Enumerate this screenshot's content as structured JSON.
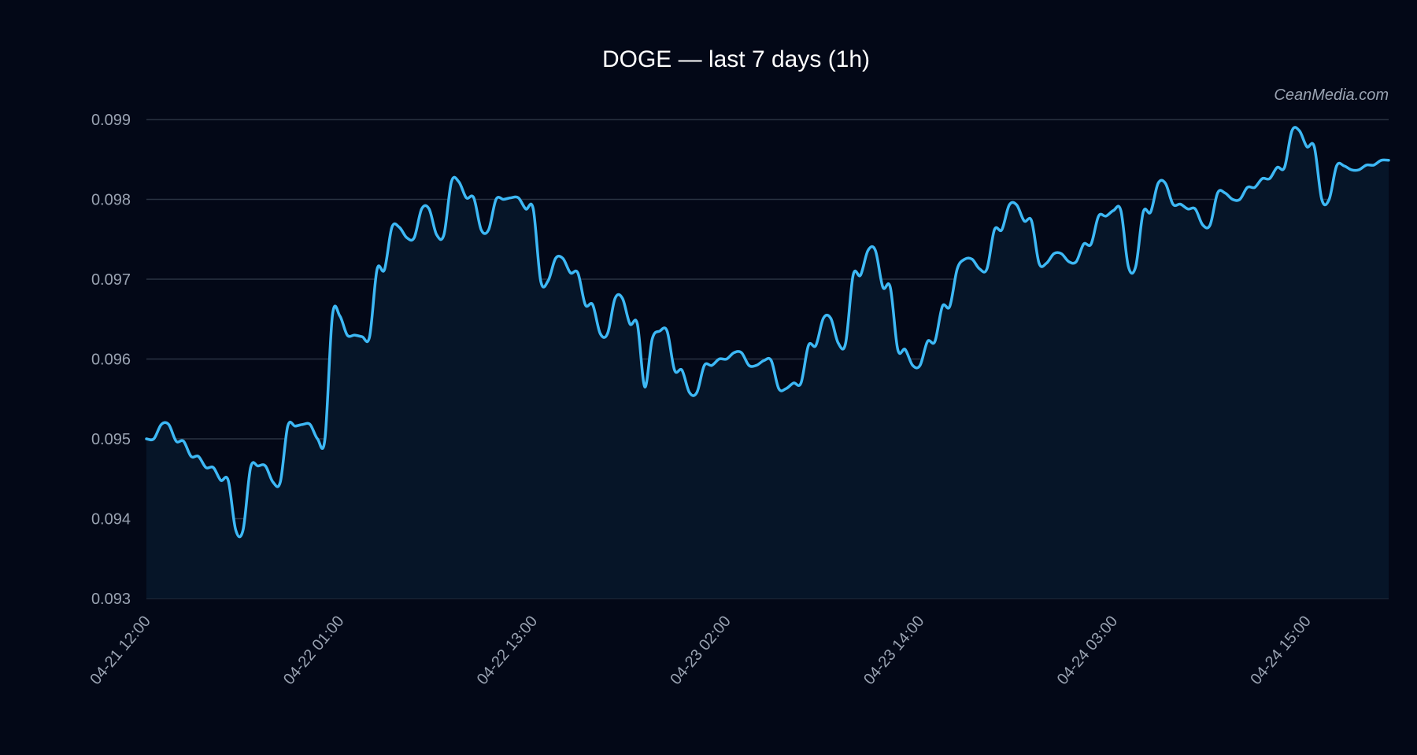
{
  "chart_data": {
    "type": "area",
    "title": "DOGE — last 7 days (1h)",
    "xlabel": "",
    "ylabel": "",
    "ylim": [
      0.093,
      0.099
    ],
    "yticks": [
      "0.093",
      "0.094",
      "0.095",
      "0.096",
      "0.097",
      "0.098",
      "0.099"
    ],
    "xtick_labels": [
      "04-21 12:00",
      "04-22 01:00",
      "04-22 13:00",
      "04-23 02:00",
      "04-23 14:00",
      "04-24 03:00",
      "04-24 15:00"
    ],
    "grid": true,
    "series": [
      {
        "values": [
          0.095,
          0.095,
          0.09518,
          0.09518,
          0.09497,
          0.09497,
          0.09478,
          0.09478,
          0.09464,
          0.09464,
          0.09448,
          0.09448,
          0.09386,
          0.09386,
          0.09464,
          0.09466,
          0.09466,
          0.09446,
          0.09446,
          0.09516,
          0.09516,
          0.09518,
          0.09518,
          0.095,
          0.095,
          0.09654,
          0.09654,
          0.0963,
          0.0963,
          0.09628,
          0.09628,
          0.09712,
          0.09712,
          0.09765,
          0.09765,
          0.09752,
          0.09752,
          0.09788,
          0.09788,
          0.09756,
          0.09756,
          0.09822,
          0.09822,
          0.09802,
          0.09802,
          0.09762,
          0.09762,
          0.098,
          0.098,
          0.09802,
          0.09802,
          0.09788,
          0.09788,
          0.09698,
          0.09698,
          0.09726,
          0.09726,
          0.09708,
          0.09708,
          0.09668,
          0.09668,
          0.09632,
          0.09632,
          0.09676,
          0.09676,
          0.09644,
          0.09644,
          0.09565,
          0.09625,
          0.09635,
          0.09635,
          0.09586,
          0.09586,
          0.09558,
          0.09558,
          0.09592,
          0.09592,
          0.096,
          0.096,
          0.09608,
          0.09608,
          0.09592,
          0.09592,
          0.09598,
          0.09598,
          0.09563,
          0.09563,
          0.0957,
          0.0957,
          0.09617,
          0.09617,
          0.09651,
          0.09651,
          0.0962,
          0.0962,
          0.09705,
          0.09705,
          0.09736,
          0.09736,
          0.0969,
          0.0969,
          0.09612,
          0.09612,
          0.09592,
          0.09592,
          0.09622,
          0.09622,
          0.09666,
          0.09666,
          0.09713,
          0.09725,
          0.09725,
          0.09713,
          0.09713,
          0.09762,
          0.09762,
          0.09793,
          0.09793,
          0.09773,
          0.09773,
          0.0972,
          0.0972,
          0.09732,
          0.09732,
          0.09722,
          0.09722,
          0.09744,
          0.09744,
          0.09779,
          0.09779,
          0.09786,
          0.09786,
          0.09716,
          0.09716,
          0.09784,
          0.09784,
          0.0982,
          0.0982,
          0.09794,
          0.09794,
          0.09788,
          0.09788,
          0.09768,
          0.09768,
          0.09808,
          0.09808,
          0.098,
          0.098,
          0.09815,
          0.09815,
          0.09826,
          0.09826,
          0.0984,
          0.0984,
          0.09886,
          0.09886,
          0.09866,
          0.09866,
          0.098,
          0.098,
          0.09842,
          0.09842,
          0.09837,
          0.09837,
          0.09843,
          0.09843,
          0.09849,
          0.09849
        ]
      }
    ]
  },
  "watermark": "CeanMedia.com",
  "colors": {
    "line": "#3db8f5",
    "fill": "#061528",
    "grid": "#2a3342",
    "background": "#030817"
  }
}
